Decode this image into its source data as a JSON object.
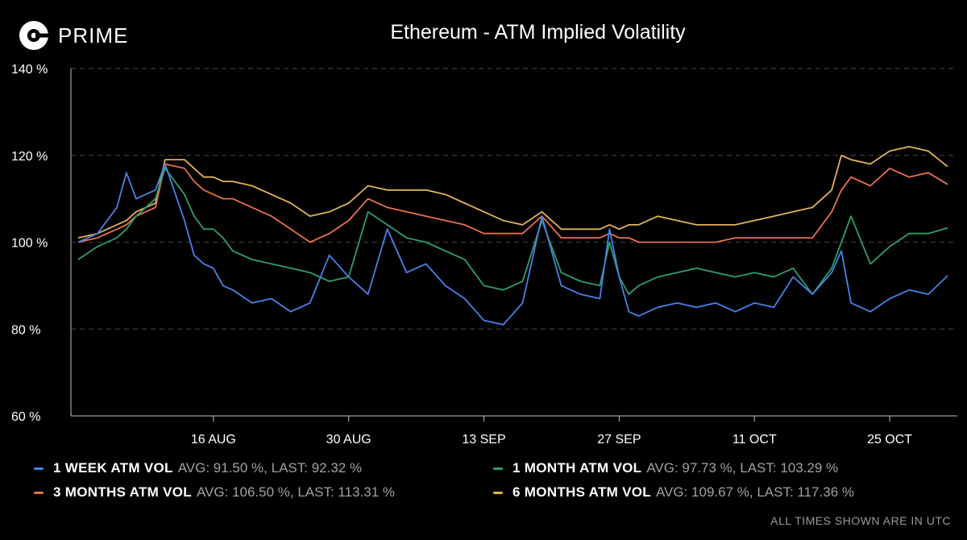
{
  "brand": {
    "name": "PRIME",
    "logo_icon": "coinbase-c-icon"
  },
  "title": "Ethereum - ATM Implied Volatility",
  "footer": "ALL TIMES SHOWN ARE IN UTC",
  "legend": [
    {
      "name": "1 WEEK ATM VOL",
      "stat": "AVG: 91.50 %, LAST: 92.32 %",
      "color": "#4a80e8"
    },
    {
      "name": "1 MONTH ATM VOL",
      "stat": "AVG: 97.73 %, LAST: 103.29 %",
      "color": "#2e9e6a"
    },
    {
      "name": "3 MONTHS ATM VOL",
      "stat": "AVG: 106.50 %, LAST: 113.31 %",
      "color": "#e8714a"
    },
    {
      "name": "6 MONTHS ATM VOL",
      "stat": "AVG: 109.67 %, LAST: 117.36 %",
      "color": "#e0b25a"
    }
  ],
  "chart_data": {
    "type": "line",
    "title": "Ethereum - ATM Implied Volatility",
    "xlabel": "",
    "ylabel": "",
    "y_unit": "%",
    "ylim": [
      60,
      140
    ],
    "y_ticks": [
      "60 %",
      "80 %",
      "100 %",
      "120 %",
      "140 %"
    ],
    "x_ticks": [
      "16 AUG",
      "30 AUG",
      "13 SEP",
      "27 SEP",
      "11 OCT",
      "25 OCT"
    ],
    "x_tick_days": [
      14,
      28,
      42,
      56,
      70,
      84
    ],
    "grid": "horizontal dashed",
    "legend_position": "bottom",
    "x_days": [
      0,
      2,
      4,
      5,
      6,
      8,
      9,
      11,
      12,
      13,
      14,
      15,
      16,
      18,
      20,
      22,
      24,
      26,
      28,
      30,
      32,
      34,
      36,
      38,
      40,
      42,
      44,
      46,
      48,
      50,
      52,
      54,
      55,
      56,
      57,
      58,
      60,
      62,
      64,
      66,
      68,
      70,
      72,
      74,
      76,
      78,
      79,
      80,
      82,
      84,
      86,
      88,
      90
    ],
    "series": [
      {
        "name": "1 WEEK ATM VOL",
        "values": [
          100,
          102,
          108,
          116,
          110,
          112,
          118,
          105,
          97,
          95,
          94,
          90,
          89,
          86,
          87,
          84,
          86,
          97,
          92,
          88,
          103,
          93,
          95,
          90,
          87,
          82,
          81,
          86,
          106,
          90,
          88,
          87,
          103,
          92,
          84,
          83,
          85,
          86,
          85,
          86,
          84,
          86,
          85,
          92,
          88,
          93,
          98,
          86,
          84,
          87,
          89,
          88,
          92.3
        ]
      },
      {
        "name": "1 MONTH ATM VOL",
        "values": [
          96,
          99,
          101,
          103,
          106,
          110,
          117,
          111,
          106,
          103,
          103,
          101,
          98,
          96,
          95,
          94,
          93,
          91,
          92,
          107,
          104,
          101,
          100,
          98,
          96,
          90,
          89,
          91,
          105,
          93,
          91,
          90,
          100,
          92,
          88,
          90,
          92,
          93,
          94,
          93,
          92,
          93,
          92,
          94,
          88,
          94,
          100,
          106,
          95,
          99,
          102,
          102,
          103.3
        ]
      },
      {
        "name": "3 MONTHS ATM VOL",
        "values": [
          100,
          101,
          103,
          104,
          106,
          108,
          118,
          117,
          114,
          112,
          111,
          110,
          110,
          108,
          106,
          103,
          100,
          102,
          105,
          110,
          108,
          107,
          106,
          105,
          104,
          102,
          102,
          102,
          106,
          101,
          101,
          101,
          102,
          101,
          101,
          100,
          100,
          100,
          100,
          100,
          101,
          101,
          101,
          101,
          101,
          107,
          112,
          115,
          113,
          117,
          115,
          116,
          113.3
        ]
      },
      {
        "name": "6 MONTHS ATM VOL",
        "values": [
          101,
          102,
          104,
          105,
          107,
          109,
          119,
          119,
          117,
          115,
          115,
          114,
          114,
          113,
          111,
          109,
          106,
          107,
          109,
          113,
          112,
          112,
          112,
          111,
          109,
          107,
          105,
          104,
          107,
          103,
          103,
          103,
          104,
          103,
          104,
          104,
          106,
          105,
          104,
          104,
          104,
          105,
          106,
          107,
          108,
          112,
          120,
          119,
          118,
          121,
          122,
          121,
          117.4
        ]
      }
    ]
  }
}
